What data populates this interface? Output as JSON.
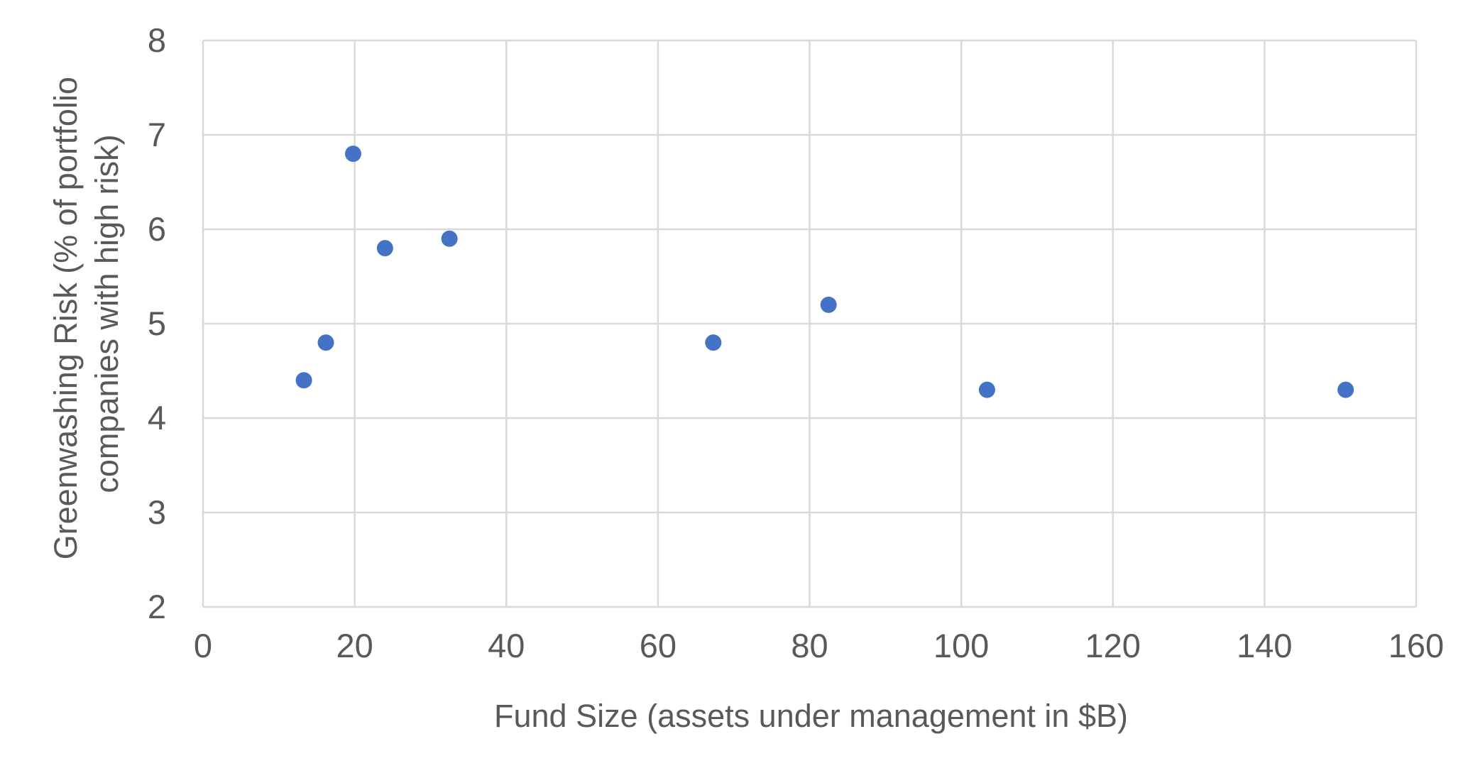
{
  "chart_data": {
    "type": "scatter",
    "title": "",
    "xlabel": "Fund Size (assets under management in $B)",
    "ylabel_lines": [
      "Greenwashing Risk (% of portfolio",
      "companies with high risk)"
    ],
    "xlim": [
      0,
      160
    ],
    "ylim": [
      2,
      8
    ],
    "xticks": [
      0,
      20,
      40,
      60,
      80,
      100,
      120,
      140,
      160
    ],
    "yticks": [
      2,
      3,
      4,
      5,
      6,
      7,
      8
    ],
    "grid": true,
    "legend": "none",
    "marker_color": "#4472c4",
    "points": [
      {
        "x": 13.3,
        "y": 4.4
      },
      {
        "x": 16.2,
        "y": 4.8
      },
      {
        "x": 19.8,
        "y": 6.8
      },
      {
        "x": 24.0,
        "y": 5.8
      },
      {
        "x": 32.5,
        "y": 5.9
      },
      {
        "x": 67.3,
        "y": 4.8
      },
      {
        "x": 82.5,
        "y": 5.2
      },
      {
        "x": 103.4,
        "y": 4.3
      },
      {
        "x": 150.7,
        "y": 4.3
      }
    ]
  }
}
